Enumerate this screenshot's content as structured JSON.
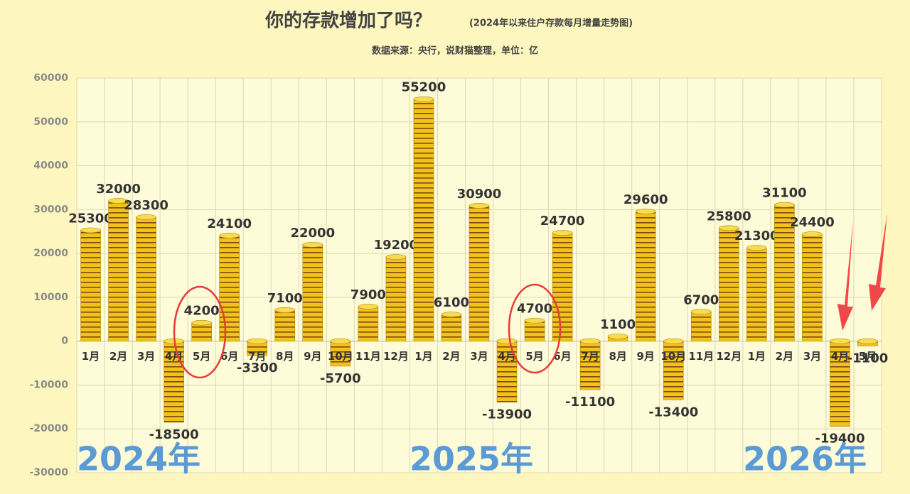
{
  "chart_data": {
    "type": "bar",
    "title": "你的存款增加了吗？",
    "subtitle": "(2024年以来住户存款每月增量走势图)",
    "source": "数据来源：央行，说财猫整理，单位：亿",
    "categories": [
      "1月",
      "2月",
      "3月",
      "4月",
      "5月",
      "6月",
      "7月",
      "8月",
      "9月",
      "10月",
      "11月",
      "12月",
      "1月",
      "2月",
      "3月",
      "4月",
      "5月",
      "6月",
      "7月",
      "8月",
      "9月",
      "10月",
      "11月",
      "12月",
      "1月",
      "2月",
      "3月",
      "4月",
      "5月"
    ],
    "values": [
      25300,
      32000,
      28300,
      -18500,
      4200,
      24100,
      -3300,
      7100,
      22000,
      -5700,
      7900,
      19200,
      55200,
      6100,
      30900,
      -13900,
      4700,
      24700,
      -11100,
      1100,
      29600,
      -13400,
      6700,
      25800,
      21300,
      31100,
      24400,
      -19400,
      -1100
    ],
    "color": "#f2c21b",
    "annotations": [
      "2024年",
      "2025年",
      "2026年"
    ],
    "ylim": [
      -30000,
      60000
    ],
    "yticks": [
      -30000,
      -20000,
      -10000,
      0,
      10000,
      20000,
      30000,
      40000,
      50000,
      60000
    ],
    "grid": true
  }
}
